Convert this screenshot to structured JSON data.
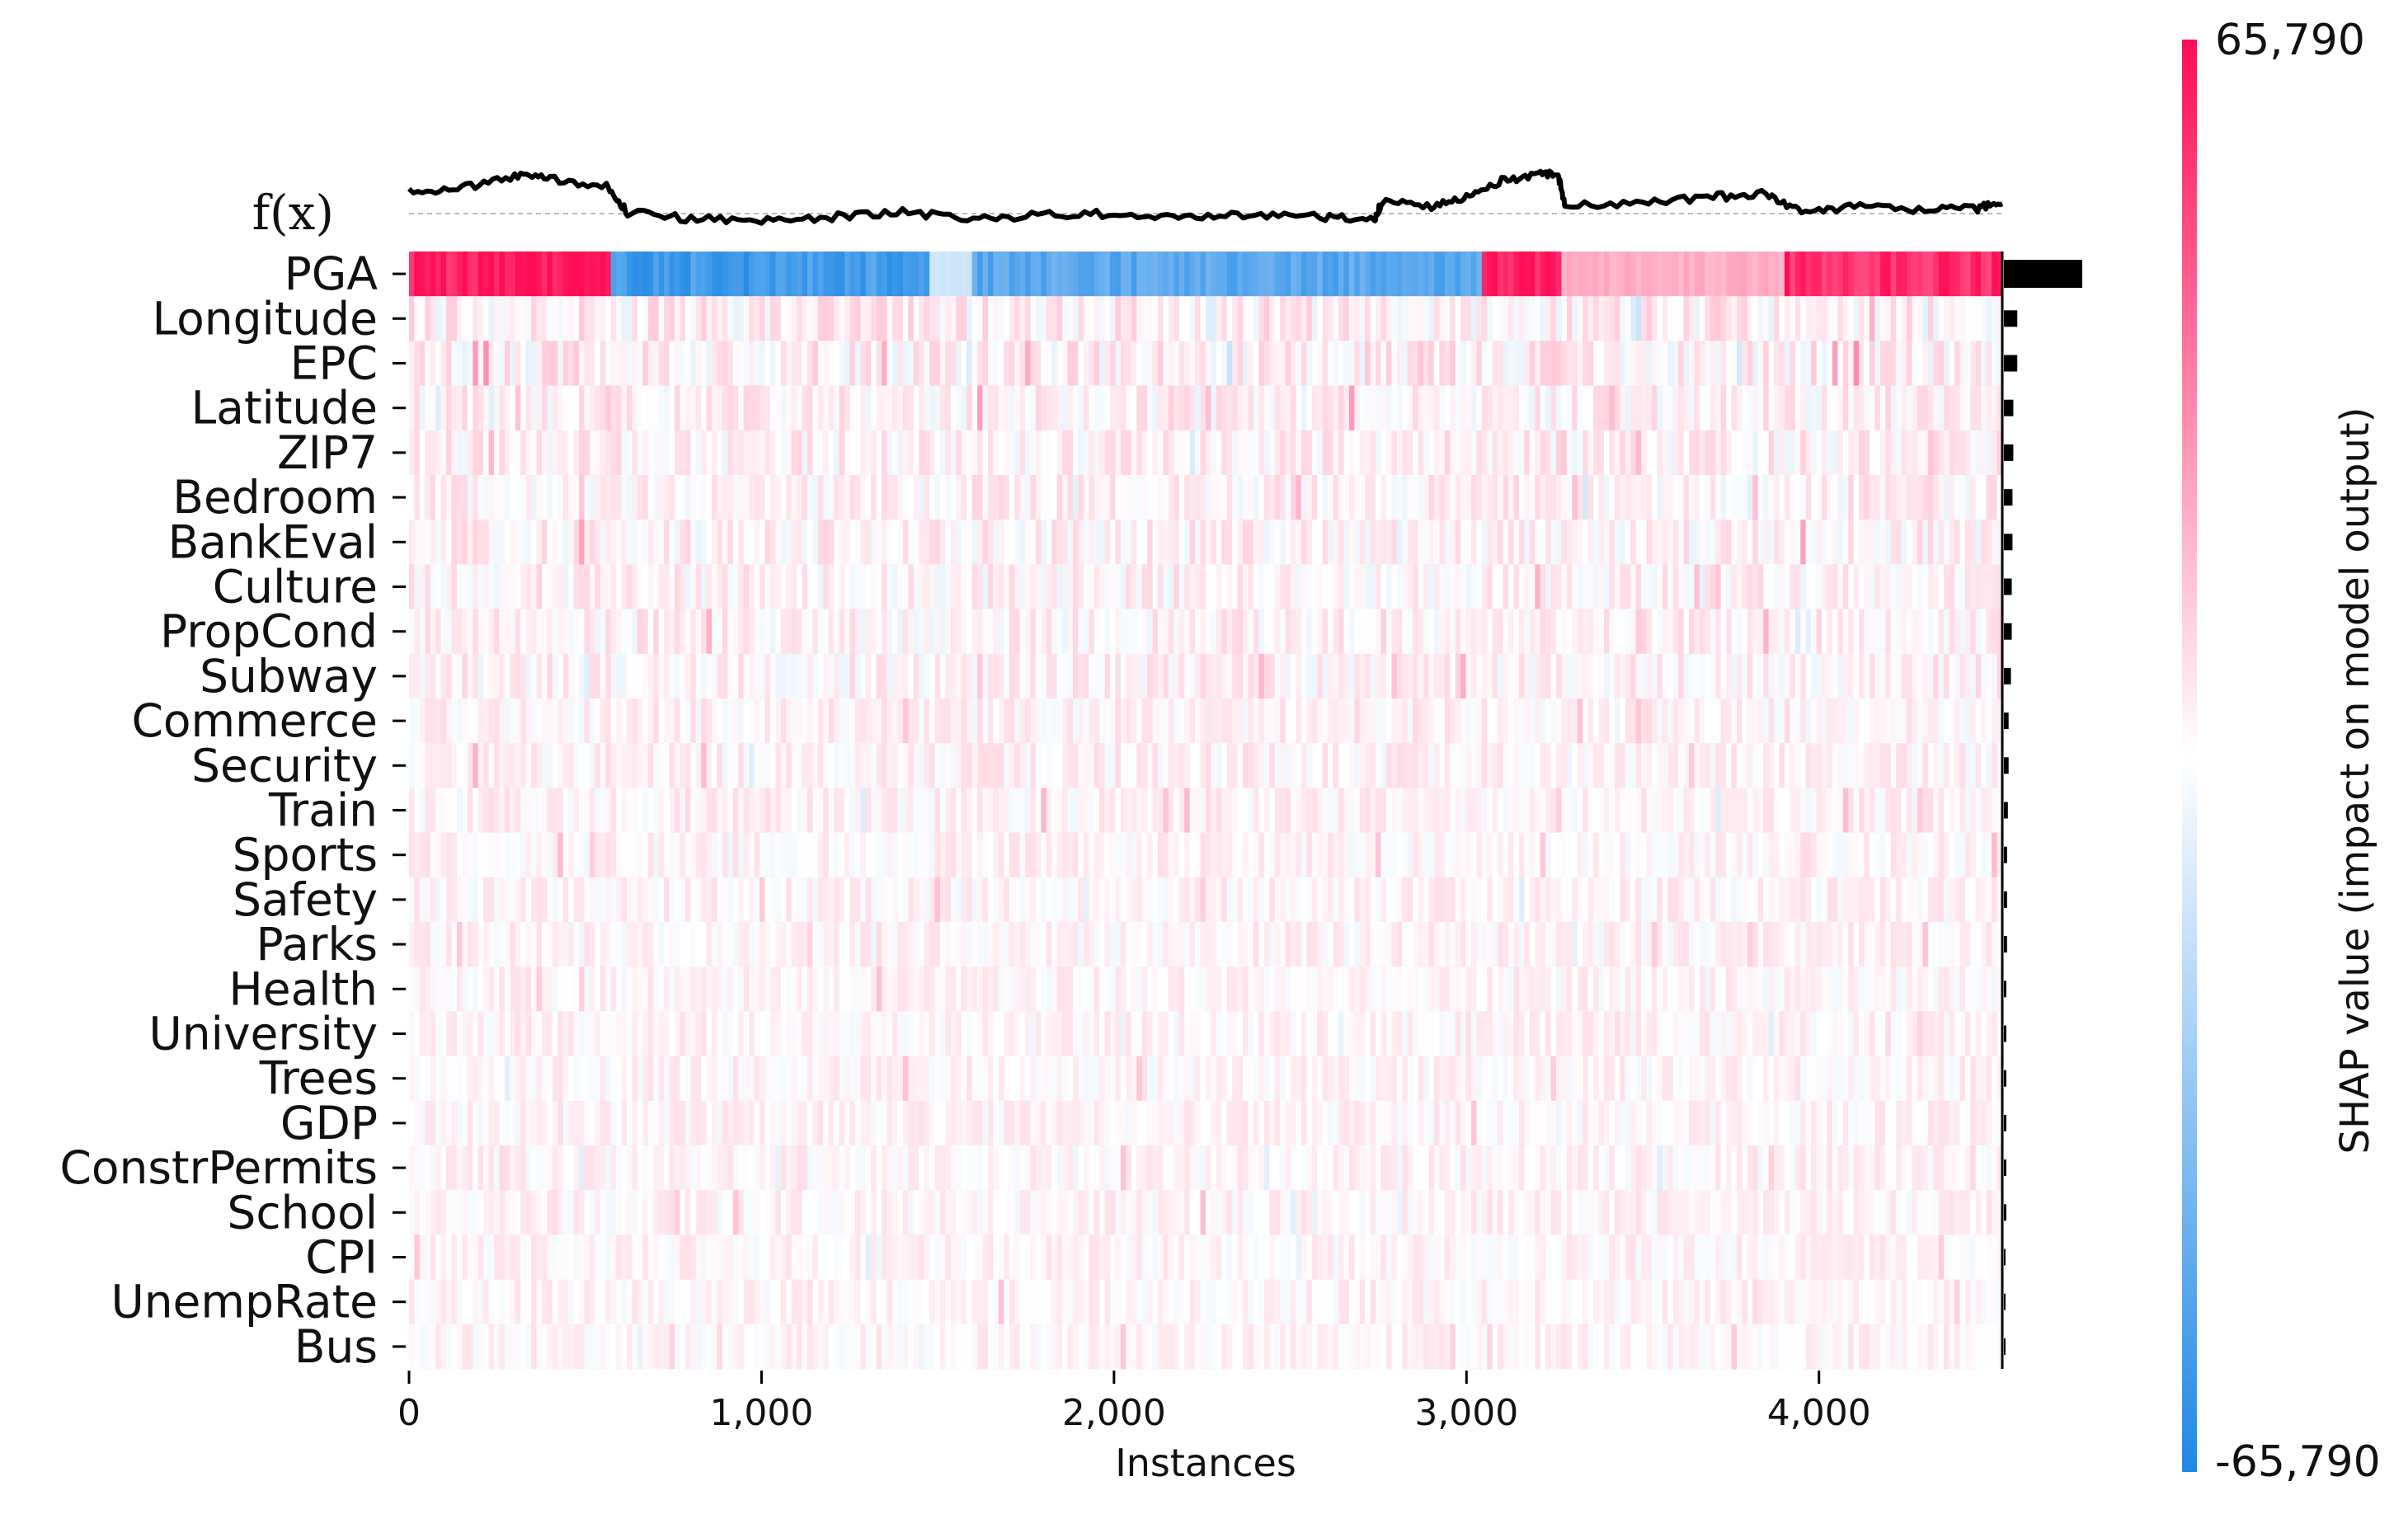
{
  "chart_data": {
    "type": "heatmap",
    "xlabel": "Instances",
    "x_ticks": [
      0,
      1000,
      2000,
      3000,
      4000
    ],
    "x_tick_labels": [
      "0",
      "1,000",
      "2,000",
      "3,000",
      "4,000"
    ],
    "xlim": [
      0,
      4520
    ],
    "fx_label": "f(x)",
    "colorbar": {
      "title": "SHAP value (impact on model output)",
      "max_label": "65,790",
      "min_label": "-65,790",
      "range": [
        -65790,
        65790
      ],
      "colors": {
        "high": "#ff0d57",
        "mid": "#ffffff",
        "low": "#1e88e5"
      }
    },
    "features": [
      {
        "name": "PGA",
        "importance": 1.0
      },
      {
        "name": "Longitude",
        "importance": 0.17
      },
      {
        "name": "EPC",
        "importance": 0.17
      },
      {
        "name": "Latitude",
        "importance": 0.12
      },
      {
        "name": "ZIP7",
        "importance": 0.12
      },
      {
        "name": "Bedroom",
        "importance": 0.11
      },
      {
        "name": "BankEval",
        "importance": 0.11
      },
      {
        "name": "Culture",
        "importance": 0.1
      },
      {
        "name": "PropCond",
        "importance": 0.1
      },
      {
        "name": "Subway",
        "importance": 0.09
      },
      {
        "name": "Commerce",
        "importance": 0.06
      },
      {
        "name": "Security",
        "importance": 0.06
      },
      {
        "name": "Train",
        "importance": 0.05
      },
      {
        "name": "Sports",
        "importance": 0.04
      },
      {
        "name": "Safety",
        "importance": 0.04
      },
      {
        "name": "Parks",
        "importance": 0.04
      },
      {
        "name": "Health",
        "importance": 0.03
      },
      {
        "name": "University",
        "importance": 0.03
      },
      {
        "name": "Trees",
        "importance": 0.03
      },
      {
        "name": "GDP",
        "importance": 0.03
      },
      {
        "name": "ConstrPermits",
        "importance": 0.03
      },
      {
        "name": "School",
        "importance": 0.03
      },
      {
        "name": "CPI",
        "importance": 0.02
      },
      {
        "name": "UnempRate",
        "importance": 0.02
      },
      {
        "name": "Bus",
        "importance": 0.02
      }
    ],
    "pga_segments": [
      {
        "from": 0,
        "to": 570,
        "value": 62000
      },
      {
        "from": 570,
        "to": 1480,
        "value": -55000
      },
      {
        "from": 1480,
        "to": 1600,
        "value": -15000
      },
      {
        "from": 1600,
        "to": 3040,
        "value": -48000
      },
      {
        "from": 3040,
        "to": 3270,
        "value": 62000
      },
      {
        "from": 3270,
        "to": 3900,
        "value": 22000
      },
      {
        "from": 3900,
        "to": 4520,
        "value": 58000
      }
    ],
    "fx_points": [
      [
        0,
        0.55
      ],
      [
        150,
        0.58
      ],
      [
        300,
        0.78
      ],
      [
        400,
        0.72
      ],
      [
        560,
        0.62
      ],
      [
        620,
        0.22
      ],
      [
        800,
        0.12
      ],
      [
        1000,
        0.1
      ],
      [
        1200,
        0.15
      ],
      [
        1400,
        0.22
      ],
      [
        1600,
        0.12
      ],
      [
        1800,
        0.18
      ],
      [
        2000,
        0.2
      ],
      [
        2200,
        0.15
      ],
      [
        2400,
        0.2
      ],
      [
        2600,
        0.14
      ],
      [
        2740,
        0.12
      ],
      [
        2760,
        0.38
      ],
      [
        2900,
        0.3
      ],
      [
        3000,
        0.45
      ],
      [
        3100,
        0.7
      ],
      [
        3200,
        0.8
      ],
      [
        3260,
        0.78
      ],
      [
        3280,
        0.32
      ],
      [
        3500,
        0.35
      ],
      [
        3700,
        0.45
      ],
      [
        3850,
        0.5
      ],
      [
        3950,
        0.22
      ],
      [
        4100,
        0.3
      ],
      [
        4300,
        0.25
      ],
      [
        4450,
        0.28
      ],
      [
        4520,
        0.35
      ]
    ]
  }
}
